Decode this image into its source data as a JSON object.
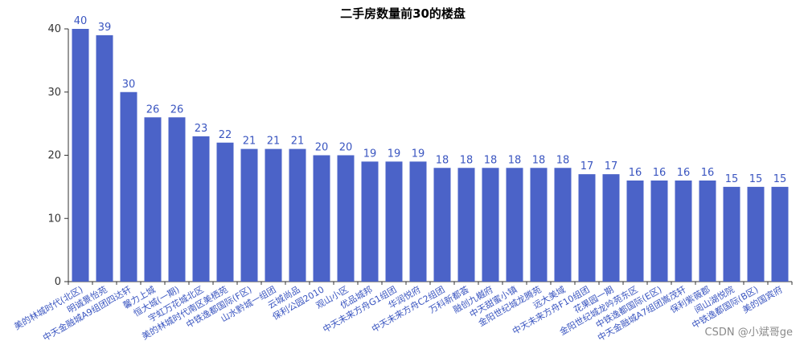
{
  "chart_data": {
    "type": "bar",
    "title": "二手房数量前30的楼盘",
    "xlabel": "",
    "ylabel": "",
    "ylim": [
      0,
      40
    ],
    "yticks": [
      0,
      10,
      20,
      30,
      40
    ],
    "grid": false,
    "bar_color": "#4b63c8",
    "label_color": "#3a55c0",
    "categories": [
      "美的林城时代(北区)",
      "明诚景怡苑",
      "中天金融城A9组团四达轩",
      "馨力上城",
      "恒大城(一期)",
      "宇虹万花城北区",
      "美的林城时代南区美栖苑",
      "中铁逸都国际(F区)",
      "山水黔城一组团",
      "云城尚品",
      "保利公园2010",
      "观山小区",
      "优品城邦",
      "中天未来方舟G1组团",
      "华润悦府",
      "中天未来方舟C2组团",
      "万科新都荟",
      "融创九樾府",
      "中天甜蜜小镇",
      "金阳世纪城龙腾苑",
      "远大美域",
      "中天未来方舟F10组团",
      "花果园一期",
      "金阳世纪城龙吟苑东区",
      "中铁逸都国际(E区)",
      "中天金融城A7组团嵩茂轩",
      "保利紫薇郡",
      "阅山湖悦院",
      "中铁逸都国际(B区)",
      "美的国宾府"
    ],
    "values": [
      40,
      39,
      30,
      26,
      26,
      23,
      22,
      21,
      21,
      21,
      20,
      20,
      19,
      19,
      19,
      18,
      18,
      18,
      18,
      18,
      18,
      17,
      17,
      16,
      16,
      16,
      16,
      15,
      15,
      15
    ]
  },
  "watermark": "CSDN @小斌哥ge"
}
